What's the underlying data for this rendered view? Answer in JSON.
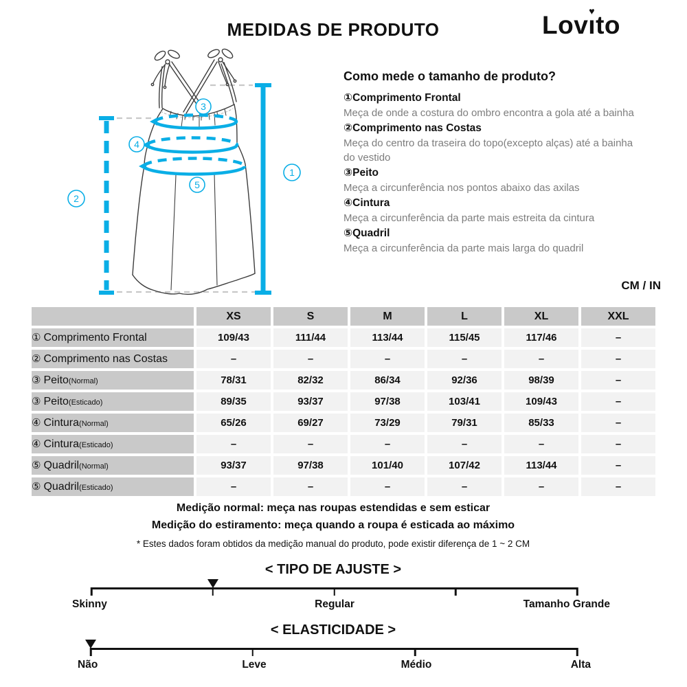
{
  "header": {
    "title": "MEDIDAS DE PRODUTO",
    "unit_label": "CM / IN"
  },
  "logo": {
    "name": "Lovito",
    "pre": "Lov",
    "dotless_i": "ı",
    "post": "to",
    "heart": "♥"
  },
  "diagram": {
    "marker_labels": [
      "1",
      "2",
      "3",
      "4",
      "5"
    ]
  },
  "instructions": {
    "heading": "Como mede o tamanho de produto?",
    "items": [
      {
        "num": "①",
        "label": "Comprimento Frontal",
        "desc": "Meça de onde a costura do ombro encontra a gola até a bainha"
      },
      {
        "num": "②",
        "label": "Comprimento nas Costas",
        "desc": "Meça do centro da traseira do topo(excepto alças) até a bainha do vestido"
      },
      {
        "num": "③",
        "label": "Peito",
        "desc": "Meça a circunferência nos pontos abaixo das axilas"
      },
      {
        "num": "④",
        "label": "Cintura",
        "desc": "Meça a circunferência da parte mais estreita da cintura"
      },
      {
        "num": "⑤",
        "label": "Quadril",
        "desc": "Meça a circunferência da parte mais larga do quadril"
      }
    ]
  },
  "table": {
    "sizes": [
      "XS",
      "S",
      "M",
      "L",
      "XL",
      "XXL"
    ],
    "rows": [
      {
        "num": "①",
        "label": "Comprimento Frontal",
        "sub": "",
        "values": [
          "109/43",
          "111/44",
          "113/44",
          "115/45",
          "117/46",
          "–"
        ]
      },
      {
        "num": "②",
        "label": "Comprimento nas Costas",
        "sub": "",
        "values": [
          "–",
          "–",
          "–",
          "–",
          "–",
          "–"
        ]
      },
      {
        "num": "③",
        "label": "Peito",
        "sub": "(Normal)",
        "values": [
          "78/31",
          "82/32",
          "86/34",
          "92/36",
          "98/39",
          "–"
        ]
      },
      {
        "num": "③",
        "label": "Peito",
        "sub": "(Esticado)",
        "values": [
          "89/35",
          "93/37",
          "97/38",
          "103/41",
          "109/43",
          "–"
        ]
      },
      {
        "num": "④",
        "label": "Cintura",
        "sub": "(Normal)",
        "values": [
          "65/26",
          "69/27",
          "73/29",
          "79/31",
          "85/33",
          "–"
        ]
      },
      {
        "num": "④",
        "label": "Cintura",
        "sub": "(Esticado)",
        "values": [
          "–",
          "–",
          "–",
          "–",
          "–",
          "–"
        ]
      },
      {
        "num": "⑤",
        "label": "Quadril",
        "sub": "(Normal)",
        "values": [
          "93/37",
          "97/38",
          "101/40",
          "107/42",
          "113/44",
          "–"
        ]
      },
      {
        "num": "⑤",
        "label": "Quadril",
        "sub": "(Esticado)",
        "values": [
          "–",
          "–",
          "–",
          "–",
          "–",
          "–"
        ]
      }
    ]
  },
  "notes": {
    "line1": "Medição normal: meça nas roupas estendidas e sem esticar",
    "line2": "Medição do estiramento: meça quando a roupa é esticada ao máximo",
    "footnote": "* Estes dados foram obtidos da medição manual do produto, pode existir diferença de 1 ~ 2 CM"
  },
  "scales": [
    {
      "title": "< TIPO DE AJUSTE >",
      "labels": [
        "Skinny",
        "Regular",
        "Tamanho Grande"
      ],
      "marker_percent": 25,
      "ticks": [
        0,
        25,
        50,
        75,
        100
      ]
    },
    {
      "title": "< ELASTICIDADE >",
      "labels": [
        "Não",
        "Leve",
        "Médio",
        "Alta"
      ],
      "marker_percent": 0,
      "ticks": [
        0,
        33.33,
        66.67,
        100
      ]
    }
  ],
  "colors": {
    "accent": "#0aaee6",
    "leader_gray": "#c8c8c8",
    "table_header_bg": "#c9c9c9",
    "table_cell_bg": "#f2f2f2"
  }
}
